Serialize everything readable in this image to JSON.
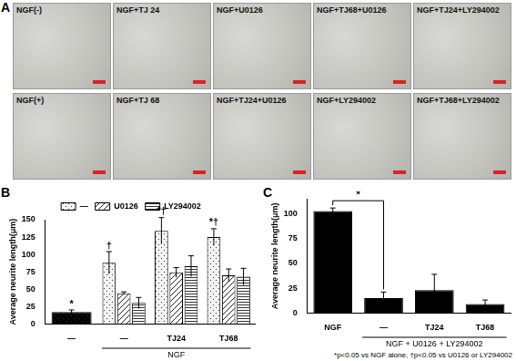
{
  "image_panel": {
    "panel": "A",
    "images": [
      "NGF(-)",
      "NGF+TJ 24",
      "NGF+U0126",
      "NGF+TJ68+U0126",
      "NGF+TJ24+LY294002",
      "NGF(+)",
      "NGF+TJ 68",
      "NGF+TJ24+U0126",
      "NGF+LY294002",
      "NGF+TJ68+LY294002"
    ]
  },
  "chart_data": [
    {
      "type": "bar",
      "panel": "B",
      "y_label": "Average neurite length(μm)",
      "categories": [
        "—",
        "—",
        "TJ24",
        "TJ68"
      ],
      "groups": [
        {
          "label": "NGF",
          "from": 1,
          "to": 3
        }
      ],
      "series": [
        {
          "name": "—",
          "colors": [
            "#000000",
            "#f2f2f2",
            "#f2f2f2",
            "#f2f2f2"
          ],
          "marker": "dots",
          "values": [
            17,
            88,
            134,
            125
          ],
          "errors": [
            3,
            16,
            19,
            12
          ],
          "significance": [
            "*",
            "†",
            "*†",
            "*†"
          ]
        },
        {
          "name": "U0126",
          "color": "#ffffff",
          "marker": "diagonal",
          "values": [
            null,
            44,
            74,
            70
          ],
          "errors": [
            null,
            2,
            7,
            9
          ]
        },
        {
          "name": "LY294002",
          "color": "#ffffff",
          "marker": "horizontal",
          "values": [
            null,
            30,
            83,
            68
          ],
          "errors": [
            null,
            8,
            15,
            12
          ]
        }
      ],
      "ylim": [
        0,
        150
      ],
      "yticks": [
        0,
        25,
        50,
        75,
        100,
        125,
        150
      ],
      "grid": false,
      "legend": "top"
    },
    {
      "type": "bar",
      "panel": "C",
      "y_label": "Average neurite length(μm)",
      "categories": [
        "NGF",
        "—",
        "TJ24",
        "TJ68"
      ],
      "groups": [
        {
          "label": "NGF + U0126 + LY294002",
          "from": 1,
          "to": 3
        }
      ],
      "values": [
        103,
        15,
        23,
        9
      ],
      "errors": [
        3,
        6,
        16,
        4
      ],
      "color": "#000000",
      "annotations": [
        {
          "text": "*",
          "from": 0,
          "to": 1
        }
      ],
      "footnote": "*p<0.05 vs NGF alone, †p<0.05 vs U0126 or LY294002",
      "ylim": [
        0,
        115
      ],
      "yticks": [
        0,
        25,
        50,
        75,
        100
      ],
      "grid": false
    }
  ]
}
